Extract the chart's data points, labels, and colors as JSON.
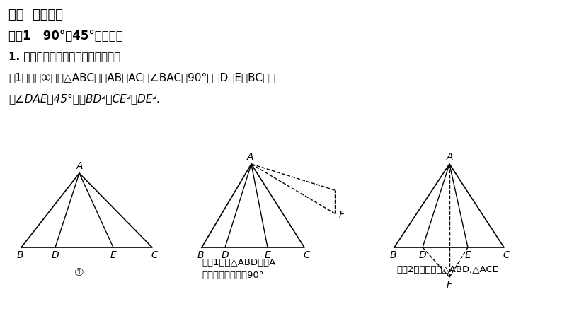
{
  "bg_color": "#ffffff",
  "title1": "一、  知识储备",
  "title2": "模型1   90°含45°半角模型",
  "title3": "1. 等腰直角三角形中的角含半角模型",
  "text1": "（1）如图①，在△ABC中，AB＝AC，∠BAC＝90°，点D，E在BC上，",
  "text2": "且∠DAE＝45°，则BD²＋CE²＝DE².",
  "caption1": "①",
  "caption2_line1": "作法1：将△ABD绕点A",
  "caption2_line2": "按逆时针方向旋转90°",
  "caption3": "作法2：分别翻折△ABD,△ACE",
  "label_A": "A",
  "label_B": "B",
  "label_C": "C",
  "label_D": "D",
  "label_E": "E",
  "label_F": "F"
}
